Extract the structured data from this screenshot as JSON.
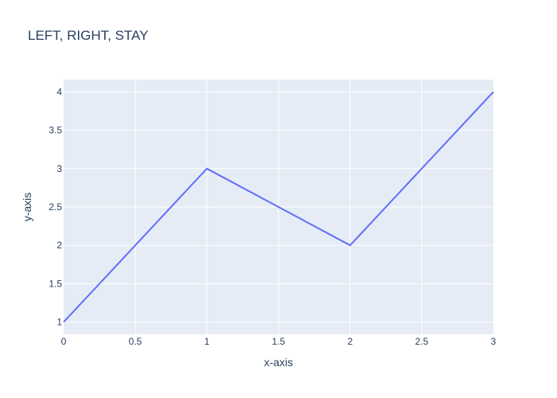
{
  "chart_data": {
    "type": "line",
    "title": "LEFT, RIGHT, STAY",
    "xlabel": "x-axis",
    "ylabel": "y-axis",
    "x": [
      0,
      1,
      2,
      3
    ],
    "series": [
      {
        "values": [
          1,
          3,
          2,
          4
        ]
      }
    ],
    "xlim": [
      0,
      3
    ],
    "ylim": [
      0.84,
      4.16
    ],
    "xticks": [
      0,
      0.5,
      1,
      1.5,
      2,
      2.5,
      3
    ],
    "xtick_labels": [
      "0",
      "0.5",
      "1",
      "1.5",
      "2",
      "2.5",
      "3"
    ],
    "yticks": [
      1,
      1.5,
      2,
      2.5,
      3,
      3.5,
      4
    ],
    "ytick_labels": [
      "1",
      "1.5",
      "2",
      "2.5",
      "3",
      "3.5",
      "4"
    ],
    "grid": true,
    "legend": "none"
  },
  "colors": {
    "plot_background": "#e5ecf6",
    "grid": "#ffffff",
    "line": "#636efa",
    "text": "#2a3f5f"
  }
}
